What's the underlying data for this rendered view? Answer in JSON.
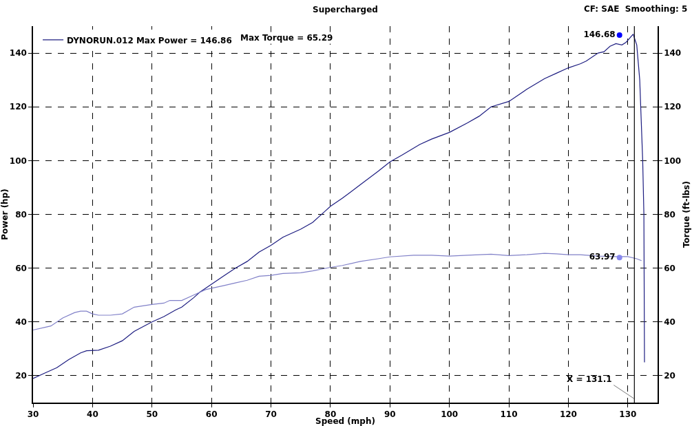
{
  "chart_data": {
    "type": "line",
    "title": "Supercharged",
    "xlabel": "Speed (mph)",
    "ylabel": "Power (hp)",
    "y2label": "Torque (ft-lbs)",
    "annotations": [
      "CF: SAE  Smoothing: 5",
      "Max Torque = 65.29"
    ],
    "series": [
      {
        "name": "DYNORUN.012 Max Power = 146.86",
        "color": "#1c1c80",
        "x": [
          30,
          32,
          34,
          36,
          38,
          39,
          41,
          43,
          45,
          47,
          50,
          52,
          54,
          55,
          57,
          58,
          60,
          62,
          64,
          66,
          68,
          70,
          72,
          75,
          77,
          79,
          80,
          82,
          85,
          88,
          90,
          92,
          95,
          97,
          100,
          103,
          105,
          107,
          110,
          113,
          116,
          118,
          120,
          122,
          123,
          125,
          126,
          127,
          128,
          129,
          129.7,
          130.9,
          131.5,
          132,
          132.5,
          132.7,
          132.8
        ],
        "values": [
          19,
          21,
          23,
          26,
          28.5,
          29.3,
          29.5,
          31,
          33,
          36.5,
          40,
          42,
          44.5,
          45.5,
          49,
          51,
          54,
          57,
          60,
          62.5,
          66,
          68.5,
          71.5,
          74.5,
          77,
          81,
          83,
          86,
          91,
          96,
          99.5,
          102,
          106,
          108,
          110.5,
          114,
          116.5,
          120,
          122,
          126.5,
          130.5,
          132.5,
          134.5,
          136,
          137,
          140,
          140.5,
          142.5,
          143.5,
          143,
          144,
          147,
          143,
          130,
          100,
          80,
          25
        ]
      },
      {
        "color": "#8080c8",
        "axis": "y2",
        "x": [
          30,
          32,
          33,
          35,
          37,
          38,
          39,
          40,
          41,
          43,
          45,
          47,
          50,
          52,
          53,
          55,
          57,
          59,
          60,
          62,
          64,
          66,
          68,
          70,
          72,
          75,
          77,
          80,
          82,
          85,
          88,
          90,
          94,
          97,
          100,
          103,
          107,
          110,
          113,
          116,
          118,
          120,
          122,
          125,
          128,
          130,
          131.5,
          132.3
        ],
        "values": [
          37,
          38,
          38.5,
          41.5,
          43.5,
          44,
          44,
          43,
          42.5,
          42.5,
          43,
          45.5,
          46.5,
          47,
          48,
          48,
          50,
          52,
          52.5,
          53.5,
          54.5,
          55.5,
          57,
          57.3,
          58,
          58.3,
          59,
          60.3,
          61,
          62.5,
          63.5,
          64.2,
          64.8,
          64.8,
          64.5,
          64.8,
          65.2,
          64.7,
          65,
          65.5,
          65.3,
          65,
          65,
          64.5,
          64.3,
          64.3,
          63.5,
          62.8
        ]
      },
      {
        "type": "scatter",
        "marker": "circle",
        "color": "#0000ff",
        "x": [
          128.6
        ],
        "values": [
          146.68
        ],
        "value_labels": [
          "146.68"
        ]
      },
      {
        "type": "scatter",
        "marker": "circle",
        "color": "#8888ee",
        "axis": "y2",
        "x": [
          128.6
        ],
        "values": [
          63.97
        ],
        "value_labels": [
          "63.97"
        ]
      }
    ],
    "ref_lines": [
      {
        "axis": "x",
        "value": 131.1,
        "label": "X = 131.1",
        "color": "#000000"
      }
    ],
    "xlim": [
      30,
      135
    ],
    "xticks": [
      30,
      40,
      50,
      60,
      70,
      80,
      90,
      100,
      110,
      120,
      130
    ],
    "ylim": [
      10,
      150
    ],
    "yticks": [
      20,
      40,
      60,
      80,
      100,
      120,
      140
    ],
    "y2lim": [
      10,
      150
    ],
    "y2ticks": [
      20,
      40,
      60,
      80,
      100,
      120,
      140
    ],
    "grid": true,
    "legend": "top left"
  }
}
